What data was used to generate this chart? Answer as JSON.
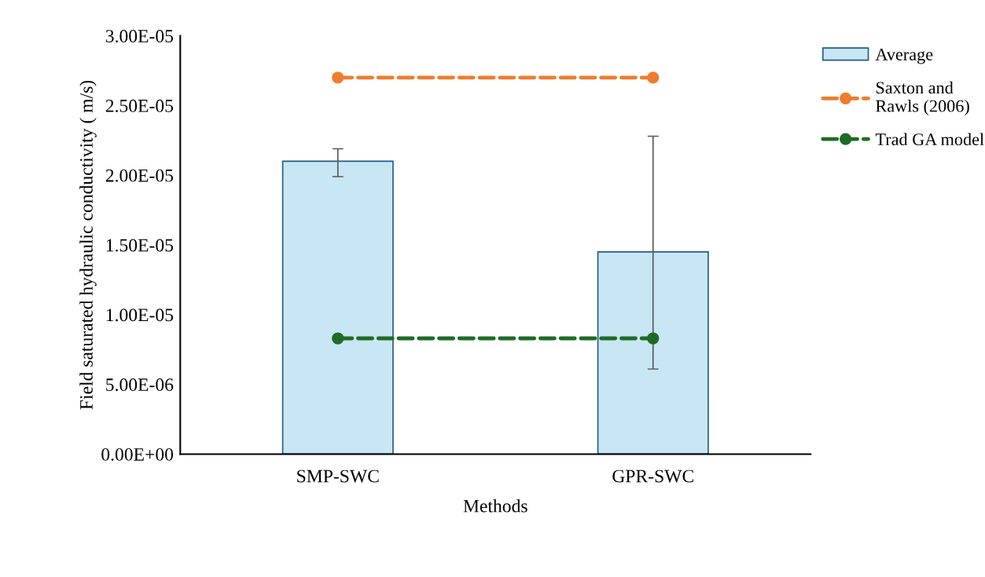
{
  "chart_data": {
    "type": "bar",
    "xlabel": "Methods",
    "ylabel": "Field saturated hydraulic conductivity ( m/s)",
    "categories": [
      "SMP-SWC",
      "GPR-SWC"
    ],
    "series": [
      {
        "name": "Average",
        "color": "#c9e6f5",
        "values": [
          2.1e-05,
          1.45e-05
        ],
        "errors": [
          [
            1.99e-05,
            2.19e-05
          ],
          [
            6.1e-06,
            2.28e-05
          ]
        ]
      },
      {
        "name": "Saxton and\nRawls (2006)",
        "type": "line",
        "color": "#ed7d31",
        "values": [
          2.7e-05,
          2.7e-05
        ],
        "marker": "circle",
        "line_style": "dashed"
      },
      {
        "name": "Trad GA model",
        "type": "line",
        "color": "#1e6b25",
        "values": [
          8.3e-06,
          8.3e-06
        ],
        "marker": "circle",
        "line_style": "dashed"
      }
    ],
    "ylim": [
      0,
      3e-05
    ],
    "yticks": [
      {
        "value": 0,
        "label": "0.00E+00"
      },
      {
        "value": 5e-06,
        "label": "5.00E-06"
      },
      {
        "value": 1e-05,
        "label": "1.00E-05"
      },
      {
        "value": 1.5e-05,
        "label": "1.50E-05"
      },
      {
        "value": 2e-05,
        "label": "2.00E-05"
      },
      {
        "value": 2.5e-05,
        "label": "2.50E-05"
      },
      {
        "value": 3e-05,
        "label": "3.00E-05"
      }
    ],
    "grid": false,
    "legend": "right"
  }
}
